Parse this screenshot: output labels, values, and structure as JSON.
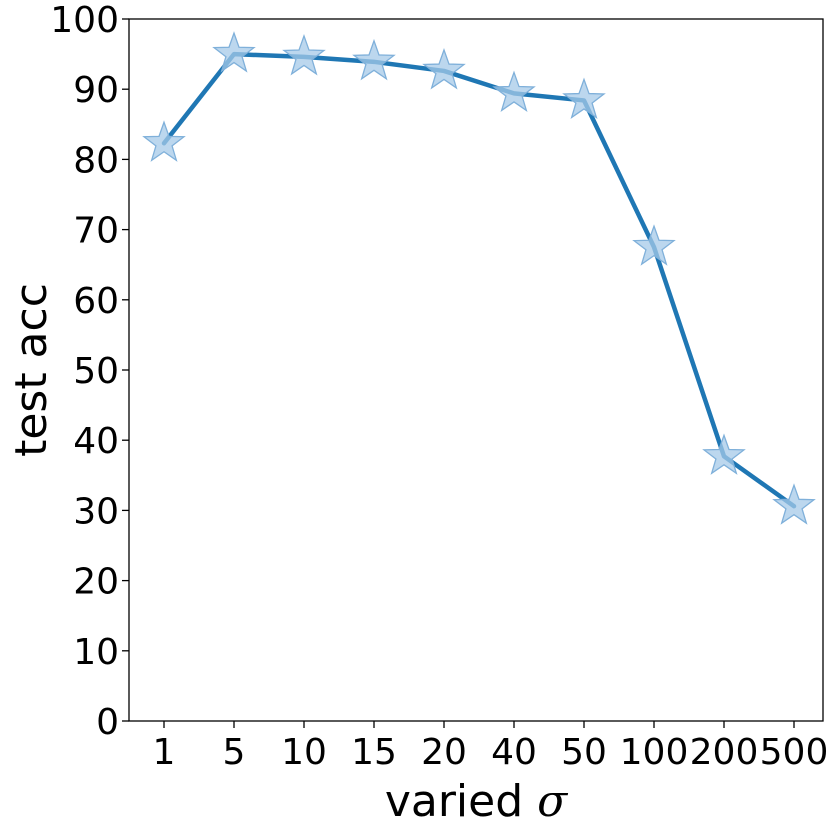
{
  "chart_data": {
    "type": "line",
    "title": "",
    "xlabel": "varied",
    "xlabel_symbol": "σ",
    "ylabel": "test acc",
    "categories": [
      "1",
      "5",
      "10",
      "15",
      "20",
      "40",
      "50",
      "100",
      "200",
      "500"
    ],
    "series": [
      {
        "values": [
          82.3,
          95.0,
          94.6,
          93.9,
          92.6,
          89.4,
          88.4,
          67.5,
          37.7,
          30.6
        ],
        "line_color": "#1f77b4",
        "marker": "star",
        "marker_color": "#a6c9e8"
      }
    ],
    "ylim": [
      0,
      100
    ],
    "yticks": [
      0,
      10,
      20,
      30,
      40,
      50,
      60,
      70,
      80,
      90,
      100
    ],
    "grid": false,
    "legend": "none"
  }
}
